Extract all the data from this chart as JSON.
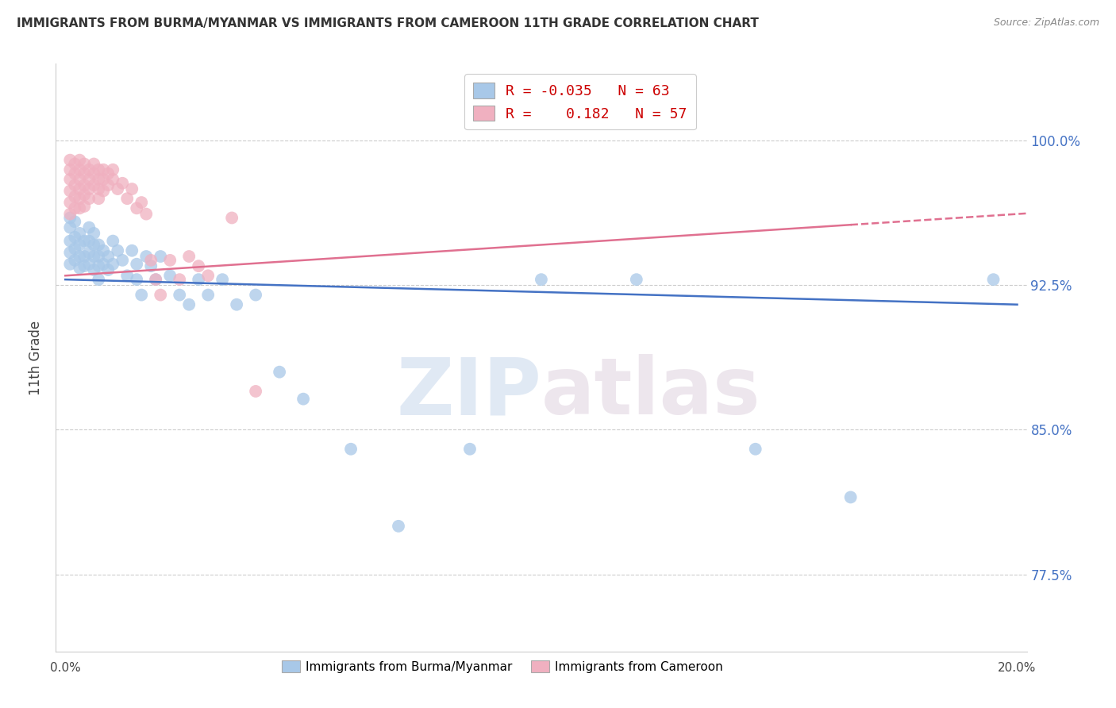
{
  "title": "IMMIGRANTS FROM BURMA/MYANMAR VS IMMIGRANTS FROM CAMEROON 11TH GRADE CORRELATION CHART",
  "source": "Source: ZipAtlas.com",
  "ylabel": "11th Grade",
  "yticks": [
    0.775,
    0.85,
    0.925,
    1.0
  ],
  "ytick_labels": [
    "77.5%",
    "85.0%",
    "92.5%",
    "100.0%"
  ],
  "xlim": [
    -0.002,
    0.202
  ],
  "ylim": [
    0.735,
    1.04
  ],
  "legend_blue_r": "-0.035",
  "legend_blue_n": "63",
  "legend_pink_r": "0.182",
  "legend_pink_n": "57",
  "blue_color": "#a8c8e8",
  "pink_color": "#f0b0c0",
  "blue_line_color": "#4472c4",
  "pink_line_color": "#e07090",
  "watermark_zip": "ZIP",
  "watermark_atlas": "atlas",
  "grid_color": "#cccccc",
  "background_color": "#ffffff",
  "blue_scatter_x": [
    0.001,
    0.001,
    0.001,
    0.001,
    0.001,
    0.002,
    0.002,
    0.002,
    0.002,
    0.003,
    0.003,
    0.003,
    0.003,
    0.004,
    0.004,
    0.004,
    0.005,
    0.005,
    0.005,
    0.005,
    0.006,
    0.006,
    0.006,
    0.006,
    0.007,
    0.007,
    0.007,
    0.007,
    0.008,
    0.008,
    0.009,
    0.009,
    0.01,
    0.01,
    0.011,
    0.012,
    0.013,
    0.014,
    0.015,
    0.015,
    0.016,
    0.017,
    0.018,
    0.019,
    0.02,
    0.022,
    0.024,
    0.026,
    0.028,
    0.03,
    0.033,
    0.036,
    0.04,
    0.045,
    0.05,
    0.06,
    0.07,
    0.085,
    0.1,
    0.12,
    0.145,
    0.165,
    0.195
  ],
  "blue_scatter_y": [
    0.96,
    0.955,
    0.948,
    0.942,
    0.936,
    0.958,
    0.95,
    0.944,
    0.938,
    0.952,
    0.946,
    0.94,
    0.934,
    0.948,
    0.94,
    0.935,
    0.955,
    0.948,
    0.942,
    0.936,
    0.952,
    0.946,
    0.94,
    0.933,
    0.946,
    0.94,
    0.935,
    0.928,
    0.943,
    0.936,
    0.94,
    0.933,
    0.948,
    0.936,
    0.943,
    0.938,
    0.93,
    0.943,
    0.936,
    0.928,
    0.92,
    0.94,
    0.935,
    0.928,
    0.94,
    0.93,
    0.92,
    0.915,
    0.928,
    0.92,
    0.928,
    0.915,
    0.92,
    0.88,
    0.866,
    0.84,
    0.8,
    0.84,
    0.928,
    0.928,
    0.84,
    0.815,
    0.928
  ],
  "pink_scatter_x": [
    0.001,
    0.001,
    0.001,
    0.001,
    0.001,
    0.001,
    0.002,
    0.002,
    0.002,
    0.002,
    0.002,
    0.003,
    0.003,
    0.003,
    0.003,
    0.003,
    0.003,
    0.004,
    0.004,
    0.004,
    0.004,
    0.004,
    0.005,
    0.005,
    0.005,
    0.005,
    0.006,
    0.006,
    0.006,
    0.007,
    0.007,
    0.007,
    0.007,
    0.008,
    0.008,
    0.008,
    0.009,
    0.009,
    0.01,
    0.01,
    0.011,
    0.012,
    0.013,
    0.014,
    0.015,
    0.016,
    0.017,
    0.018,
    0.019,
    0.02,
    0.022,
    0.024,
    0.026,
    0.028,
    0.03,
    0.035,
    0.04
  ],
  "pink_scatter_y": [
    0.99,
    0.985,
    0.98,
    0.974,
    0.968,
    0.962,
    0.988,
    0.983,
    0.977,
    0.971,
    0.965,
    0.99,
    0.985,
    0.98,
    0.975,
    0.97,
    0.965,
    0.988,
    0.983,
    0.977,
    0.972,
    0.966,
    0.985,
    0.98,
    0.975,
    0.97,
    0.988,
    0.983,
    0.977,
    0.985,
    0.98,
    0.975,
    0.97,
    0.985,
    0.98,
    0.974,
    0.983,
    0.977,
    0.985,
    0.98,
    0.975,
    0.978,
    0.97,
    0.975,
    0.965,
    0.968,
    0.962,
    0.938,
    0.928,
    0.92,
    0.938,
    0.928,
    0.94,
    0.935,
    0.93,
    0.96,
    0.87
  ]
}
